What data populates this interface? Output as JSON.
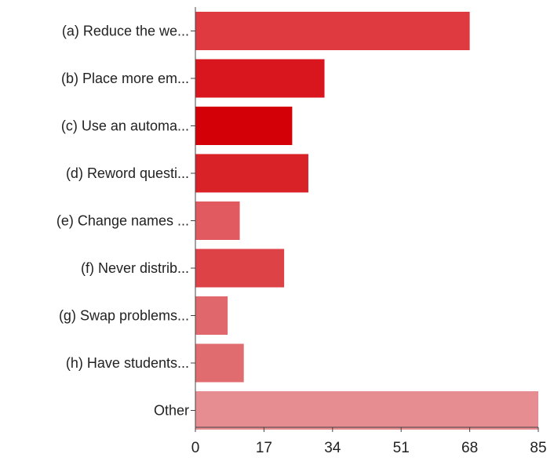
{
  "chart_data": {
    "type": "bar",
    "orientation": "horizontal",
    "categories": [
      "(a) Reduce the we...",
      "(b) Place more em...",
      "(c) Use an automa...",
      "(d) Reword questi...",
      "(e) Change names ...",
      "(f) Never distrib...",
      "(g) Swap problems...",
      "(h) Have students...",
      "Other"
    ],
    "values": [
      68,
      32,
      24,
      28,
      11,
      22,
      8,
      12,
      85
    ],
    "bar_colors": [
      "#de3a3f",
      "#d9151d",
      "#d40008",
      "#d82228",
      "#e05a5f",
      "#dd4247",
      "#e0686d",
      "#e06c70",
      "#e58d91"
    ],
    "xlim": [
      0,
      85
    ],
    "xticks": [
      "0",
      "17",
      "34",
      "51",
      "68",
      "85"
    ],
    "title": "",
    "xlabel": "",
    "ylabel": "",
    "grid": false,
    "legend": "none"
  }
}
